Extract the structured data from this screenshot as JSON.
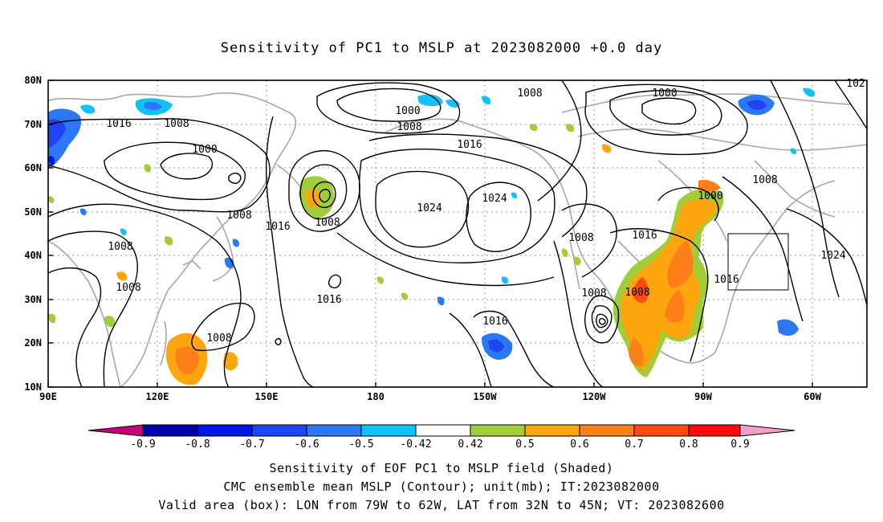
{
  "title": "Sensitivity of PC1 to MSLP at 2023082000 +0.0 day",
  "lat_labels": [
    "80N",
    "70N",
    "60N",
    "50N",
    "40N",
    "30N",
    "20N",
    "10N"
  ],
  "lon_labels": [
    "90E",
    "120E",
    "150E",
    "180",
    "150W",
    "120W",
    "90W",
    "60W"
  ],
  "contour_labels": [
    {
      "text": "1008"
    },
    {
      "text": "1000"
    },
    {
      "text": "1008"
    },
    {
      "text": "1016"
    },
    {
      "text": "1000"
    },
    {
      "text": "1016"
    },
    {
      "text": "1008"
    },
    {
      "text": "1000"
    },
    {
      "text": "1008"
    },
    {
      "text": "1024"
    },
    {
      "text": "1024"
    },
    {
      "text": "1008"
    },
    {
      "text": "1016"
    },
    {
      "text": "1008"
    },
    {
      "text": "1008"
    },
    {
      "text": "1016"
    },
    {
      "text": "1008"
    },
    {
      "text": "1016"
    },
    {
      "text": "1008"
    },
    {
      "text": "1008"
    },
    {
      "text": "1016"
    },
    {
      "text": "1016"
    },
    {
      "text": "1000"
    },
    {
      "text": "1008"
    },
    {
      "text": "1024"
    },
    {
      "text": "102"
    }
  ],
  "colorbar": {
    "labels": [
      "-0.9",
      "-0.8",
      "-0.7",
      "-0.6",
      "-0.5",
      "-0.42",
      "0.42",
      "0.5",
      "0.6",
      "0.7",
      "0.8",
      "0.9"
    ],
    "colors": [
      "#c8007a",
      "#0000a8",
      "#0015e6",
      "#1d46f0",
      "#2a78f5",
      "#12c2f5",
      "#ffffff",
      "#a0cd38",
      "#fda50f",
      "#fd7f18",
      "#fd4a12",
      "#fd0a0a",
      "#f5a0c8"
    ]
  },
  "captions": [
    "Sensitivity of EOF PC1 to MSLP field (Shaded)",
    "CMC ensemble mean MSLP (Contour); unit(mb); IT:2023082000",
    "Valid area (box): LON from 79W to 62W, LAT from 32N to 45N; VT: 2023082600"
  ]
}
